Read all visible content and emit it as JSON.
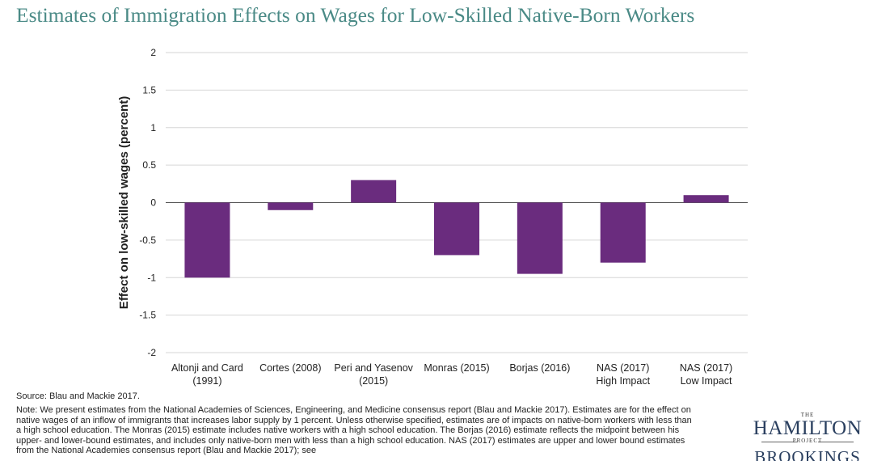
{
  "chart_data": {
    "type": "bar",
    "title": "Estimates of Immigration Effects on Wages for Low-Skilled Native-Born Workers",
    "xlabel": "",
    "ylabel": "Effect on low-skilled wages (percent)",
    "ylim": [
      -2,
      2
    ],
    "yticks": [
      2,
      1.5,
      1,
      0.5,
      0,
      -0.5,
      -1,
      -1.5,
      -2
    ],
    "ytick_labels": [
      "2",
      "1.5",
      "1",
      "0.5",
      "0",
      "-0.5",
      "-1",
      "-1.5",
      "-2"
    ],
    "categories": [
      [
        "Altonji and Card",
        "(1991)"
      ],
      [
        "Cortes (2008)"
      ],
      [
        "Peri and Yasenov",
        "(2015)"
      ],
      [
        "Monras (2015)"
      ],
      [
        "Borjas (2016)"
      ],
      [
        "NAS (2017)",
        "High Impact"
      ],
      [
        "NAS (2017)",
        "Low Impact"
      ]
    ],
    "values": [
      -1.0,
      -0.1,
      0.3,
      -0.7,
      -0.95,
      -0.8,
      0.1
    ],
    "grid": true,
    "bar_color": "#6a2c7e"
  },
  "footer": {
    "source": "Source: Blau and Mackie 2017.",
    "note": "Note: We present estimates from the National Academies of Sciences, Engineering, and Medicine consensus report (Blau and Mackie 2017). Estimates are for the effect on native wages of an inflow of immigrants that increases labor supply by 1 percent. Unless otherwise specified, estimates are of impacts on native-born workers with less than a high school education. The Monras (2015) estimate includes native workers with a high school education. The Borjas (2016) estimate reflects the midpoint between his upper- and lower-bound estimates, and includes only native-born men with less than a high school education. NAS (2017) estimates are upper and lower bound estimates from the National Academies consensus report (Blau and Mackie 2017); see"
  },
  "logo": {
    "the": "THE",
    "hamilton": "HAMILTON",
    "project": "PROJECT",
    "brookings": "BROOKINGS"
  }
}
